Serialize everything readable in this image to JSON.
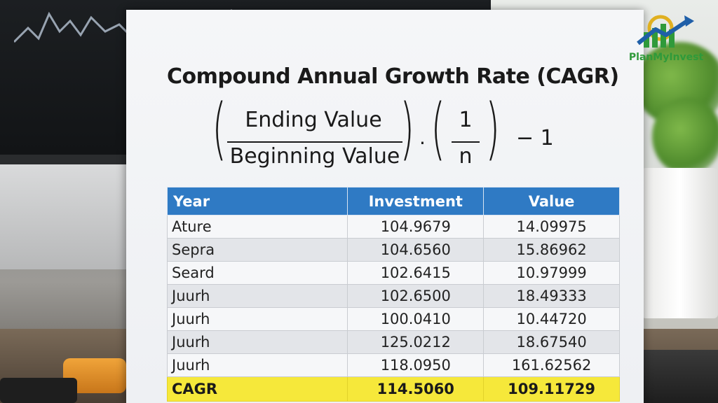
{
  "document": {
    "title": "Compound Annual Growth Rate (CAGR)",
    "formula": {
      "numerator": "Ending Value",
      "denominator": "Beginning Value",
      "exponent_numerator": "1",
      "exponent_denominator": "n",
      "dot": "·",
      "suffix": "− 1"
    }
  },
  "table": {
    "headers": [
      "Year",
      "Investment",
      "Value"
    ],
    "rows": [
      [
        "Ature",
        "104.9679",
        "14.09975"
      ],
      [
        "Sepra",
        "104.6560",
        "15.86962"
      ],
      [
        "Seard",
        "102.6415",
        "10.97999"
      ],
      [
        "Juurh",
        "102.6500",
        "18.49333"
      ],
      [
        "Juurh",
        "100.0410",
        "10.44720"
      ],
      [
        "Juurh",
        "125.0212",
        "18.67540"
      ],
      [
        "Juurh",
        "118.0950",
        "161.62562"
      ]
    ],
    "summary": [
      "CAGR",
      "114.5060",
      "109.11729"
    ],
    "colors": {
      "header": "#2f7ac4",
      "highlight": "#f6e83a"
    }
  },
  "logo": {
    "text": "PlanMyInvest",
    "colors": {
      "green": "#2f9a3a",
      "blue": "#1f5fa8",
      "gold": "#e0b020"
    }
  }
}
